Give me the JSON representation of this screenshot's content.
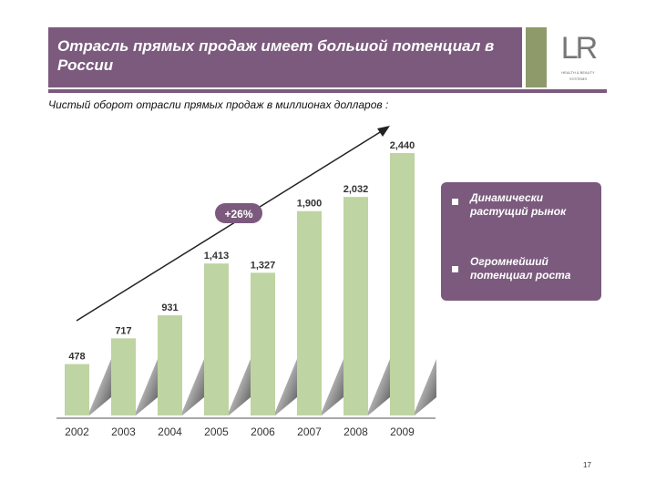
{
  "header": {
    "title": "Отрасль прямых продаж имеет большой потенциал в России"
  },
  "logo": {
    "mark": "LR",
    "sub1": "HEALTH & BEAUTY",
    "sub2": "SYSTEMS"
  },
  "subtitle": "Чистый оборот отрасли прямых продаж в миллионах долларов :",
  "chart_data": {
    "type": "bar",
    "categories": [
      "2002",
      "2003",
      "2004",
      "2005",
      "2006",
      "2007",
      "2008",
      "2009"
    ],
    "values": [
      478,
      717,
      931,
      1413,
      1327,
      1900,
      2032,
      2440
    ],
    "value_labels": [
      "478",
      "717",
      "931",
      "1,413",
      "1,327",
      "1,900",
      "2,032",
      "2,440"
    ],
    "annotation": "+26%",
    "ylim": [
      0,
      2600
    ],
    "bar_color": "#bed4a2",
    "grid": false
  },
  "panel": {
    "items": [
      {
        "text_line1": "Динамически",
        "text_line2": "растущий рынок"
      },
      {
        "text_line1": "Огромнейший",
        "text_line2": "потенциал роста"
      }
    ]
  },
  "page_number": "17",
  "colors": {
    "accent": "#7b5a7d",
    "olive": "#8f9a6a",
    "bars": "#bed4a2"
  }
}
